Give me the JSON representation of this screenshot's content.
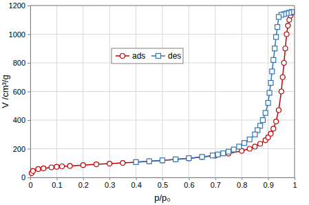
{
  "chart_data": {
    "type": "line",
    "x_label": "p/p₀",
    "y_label": "V /cm³/g",
    "xlim": [
      0,
      1
    ],
    "xticks": [
      0,
      0.1,
      0.2,
      0.3,
      0.4,
      0.5,
      0.6,
      0.7,
      0.8,
      0.9,
      1
    ],
    "ylim": [
      0,
      1200
    ],
    "yticks": [
      0,
      200,
      400,
      600,
      800,
      1000,
      1200
    ],
    "grid": true,
    "legend": "top",
    "series": [
      {
        "name": "ads",
        "color": "#c00000",
        "marker": "circle",
        "line_style": "solid",
        "x": [
          0.005,
          0.01,
          0.03,
          0.05,
          0.08,
          0.1,
          0.12,
          0.15,
          0.2,
          0.25,
          0.3,
          0.35,
          0.4,
          0.45,
          0.5,
          0.55,
          0.6,
          0.65,
          0.7,
          0.75,
          0.8,
          0.83,
          0.85,
          0.87,
          0.89,
          0.9,
          0.91,
          0.92,
          0.93,
          0.94,
          0.95,
          0.955,
          0.96,
          0.965,
          0.97,
          0.975,
          0.98,
          0.985,
          0.99
        ],
        "values": [
          30,
          45,
          58,
          63,
          70,
          74,
          77,
          80,
          86,
          91,
          96,
          101,
          106,
          112,
          118,
          125,
          133,
          142,
          152,
          166,
          185,
          200,
          215,
          235,
          260,
          280,
          305,
          340,
          390,
          470,
          600,
          700,
          800,
          900,
          1000,
          1060,
          1100,
          1130,
          1150
        ]
      },
      {
        "name": "des",
        "color": "#2e75b6",
        "marker": "square",
        "line_style": "solid",
        "x": [
          0.99,
          0.98,
          0.97,
          0.96,
          0.95,
          0.94,
          0.935,
          0.93,
          0.925,
          0.92,
          0.915,
          0.91,
          0.905,
          0.9,
          0.89,
          0.88,
          0.87,
          0.86,
          0.85,
          0.83,
          0.81,
          0.79,
          0.77,
          0.75,
          0.73,
          0.71,
          0.69,
          0.65,
          0.6,
          0.55,
          0.5,
          0.45,
          0.4
        ],
        "values": [
          1155,
          1150,
          1145,
          1140,
          1135,
          1120,
          1050,
          980,
          900,
          820,
          740,
          660,
          590,
          520,
          450,
          400,
          360,
          330,
          300,
          265,
          240,
          215,
          195,
          180,
          168,
          160,
          153,
          143,
          134,
          126,
          119,
          113,
          107
        ]
      }
    ]
  }
}
